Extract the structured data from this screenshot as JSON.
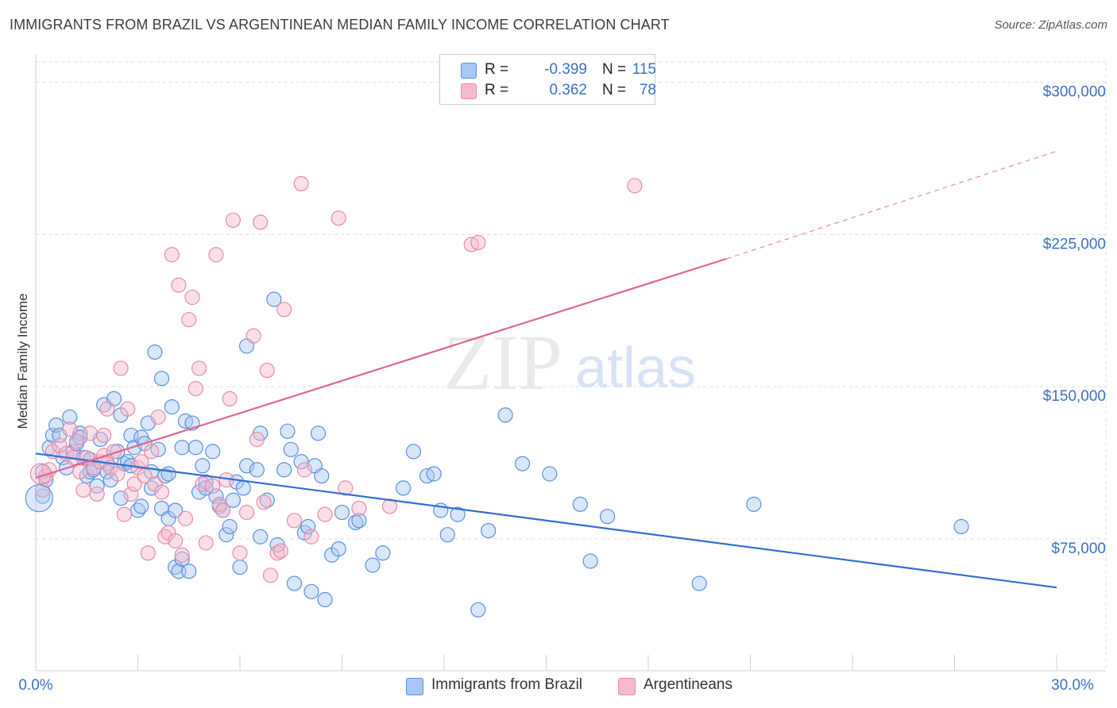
{
  "title": "IMMIGRANTS FROM BRAZIL VS ARGENTINEAN MEDIAN FAMILY INCOME CORRELATION CHART",
  "source": "Source: ZipAtlas.com",
  "watermark": {
    "zip": "ZIP",
    "atlas": "atlas"
  },
  "colors": {
    "blue": "#2f6fd0",
    "blue_fill": "#a9c7f3",
    "blue_edge": "#5b8fdc",
    "pink": "#e0658f",
    "pink_fill": "#f6b9cc",
    "pink_edge": "#e68aa8",
    "axis_text": "#3a6fc4",
    "grid": "#dddddd"
  },
  "legend": {
    "rows": [
      {
        "r_label": "R =",
        "r_value": "-0.399",
        "n_label": "N =",
        "n_value": "115"
      },
      {
        "r_label": "R =",
        "r_value": "0.362",
        "n_label": "N =",
        "n_value": "78"
      }
    ]
  },
  "bottom_legend": {
    "series1": "Immigrants from Brazil",
    "series2": "Argentineans"
  },
  "chart_data": {
    "type": "scatter",
    "xlabel": "",
    "ylabel": "Median Family Income",
    "xlim": [
      0,
      30
    ],
    "ylim": [
      10000,
      310000
    ],
    "x_tick_labels": [
      "0.0%",
      "30.0%"
    ],
    "y_ticks": [
      75000,
      150000,
      225000,
      300000
    ],
    "y_tick_labels": [
      "$75,000",
      "$150,000",
      "$225,000",
      "$300,000"
    ],
    "grid": true,
    "series": [
      {
        "name": "Immigrants from Brazil",
        "color": "#2f6fd0",
        "trend": {
          "x0": 0,
          "y0": 117000,
          "x1": 30,
          "y1": 51000
        },
        "points": [
          [
            0.2,
            96000
          ],
          [
            0.2,
            108000
          ],
          [
            0.3,
            104000
          ],
          [
            0.4,
            120000
          ],
          [
            0.5,
            126000
          ],
          [
            0.6,
            131000
          ],
          [
            0.7,
            126000
          ],
          [
            0.8,
            115000
          ],
          [
            0.9,
            110000
          ],
          [
            1.0,
            135000
          ],
          [
            1.1,
            118000
          ],
          [
            1.2,
            122000
          ],
          [
            1.3,
            127000
          ],
          [
            1.3,
            125000
          ],
          [
            1.4,
            115000
          ],
          [
            1.5,
            106000
          ],
          [
            1.6,
            114000
          ],
          [
            1.6,
            108000
          ],
          [
            1.7,
            109000
          ],
          [
            1.8,
            101000
          ],
          [
            1.9,
            124000
          ],
          [
            2.0,
            141000
          ],
          [
            2.1,
            112000
          ],
          [
            2.1,
            108000
          ],
          [
            2.2,
            104000
          ],
          [
            2.3,
            144000
          ],
          [
            2.4,
            118000
          ],
          [
            2.5,
            136000
          ],
          [
            2.5,
            95000
          ],
          [
            2.6,
            112000
          ],
          [
            2.7,
            113000
          ],
          [
            2.8,
            111000
          ],
          [
            2.8,
            126000
          ],
          [
            2.9,
            120000
          ],
          [
            3.0,
            89000
          ],
          [
            3.1,
            91000
          ],
          [
            3.1,
            125000
          ],
          [
            3.2,
            122000
          ],
          [
            3.3,
            132000
          ],
          [
            3.4,
            108000
          ],
          [
            3.4,
            100000
          ],
          [
            3.5,
            167000
          ],
          [
            3.6,
            119000
          ],
          [
            3.7,
            90000
          ],
          [
            3.7,
            154000
          ],
          [
            3.8,
            106000
          ],
          [
            3.9,
            85000
          ],
          [
            3.9,
            107000
          ],
          [
            4.0,
            140000
          ],
          [
            4.1,
            89000
          ],
          [
            4.1,
            61000
          ],
          [
            4.2,
            59000
          ],
          [
            4.3,
            65000
          ],
          [
            4.3,
            120000
          ],
          [
            4.4,
            133000
          ],
          [
            4.5,
            59000
          ],
          [
            4.6,
            132000
          ],
          [
            4.7,
            120000
          ],
          [
            4.8,
            98000
          ],
          [
            4.9,
            111000
          ],
          [
            5.0,
            103000
          ],
          [
            5.0,
            100000
          ],
          [
            5.2,
            118000
          ],
          [
            5.3,
            96000
          ],
          [
            5.4,
            91000
          ],
          [
            5.5,
            89000
          ],
          [
            5.6,
            77000
          ],
          [
            5.7,
            81000
          ],
          [
            5.8,
            94000
          ],
          [
            5.9,
            103000
          ],
          [
            6.0,
            61000
          ],
          [
            6.1,
            100000
          ],
          [
            6.2,
            170000
          ],
          [
            6.2,
            111000
          ],
          [
            6.5,
            109000
          ],
          [
            6.6,
            76000
          ],
          [
            6.6,
            127000
          ],
          [
            6.8,
            94000
          ],
          [
            7.0,
            193000
          ],
          [
            7.1,
            72000
          ],
          [
            7.3,
            109000
          ],
          [
            7.4,
            128000
          ],
          [
            7.5,
            119000
          ],
          [
            7.6,
            53000
          ],
          [
            7.8,
            113000
          ],
          [
            7.9,
            78000
          ],
          [
            8.0,
            81000
          ],
          [
            8.1,
            49000
          ],
          [
            8.2,
            111000
          ],
          [
            8.3,
            127000
          ],
          [
            8.4,
            106000
          ],
          [
            8.5,
            45000
          ],
          [
            8.7,
            67000
          ],
          [
            8.9,
            70000
          ],
          [
            9.0,
            88000
          ],
          [
            9.4,
            83000
          ],
          [
            9.5,
            84000
          ],
          [
            9.9,
            62000
          ],
          [
            10.2,
            68000
          ],
          [
            10.8,
            100000
          ],
          [
            11.1,
            118000
          ],
          [
            11.5,
            106000
          ],
          [
            11.7,
            107000
          ],
          [
            11.9,
            89000
          ],
          [
            12.1,
            77000
          ],
          [
            12.4,
            87000
          ],
          [
            13.0,
            40000
          ],
          [
            13.3,
            79000
          ],
          [
            13.8,
            136000
          ],
          [
            14.3,
            112000
          ],
          [
            15.1,
            107000
          ],
          [
            16.0,
            92000
          ],
          [
            16.3,
            64000
          ],
          [
            16.8,
            86000
          ],
          [
            19.5,
            53000
          ],
          [
            21.1,
            92000
          ],
          [
            27.2,
            81000
          ]
        ]
      },
      {
        "name": "Argentineans",
        "color": "#e0658f",
        "trend": {
          "x0": 0,
          "y0": 105000,
          "x1": 20.3,
          "y1": 213000,
          "x_dash_end": 30,
          "y_dash_end": 266000
        },
        "points": [
          [
            0.2,
            99000
          ],
          [
            0.3,
            106000
          ],
          [
            0.4,
            109000
          ],
          [
            0.5,
            118000
          ],
          [
            0.7,
            121000
          ],
          [
            0.9,
            117000
          ],
          [
            1.0,
            129000
          ],
          [
            1.1,
            115000
          ],
          [
            1.2,
            123000
          ],
          [
            1.3,
            108000
          ],
          [
            1.4,
            99000
          ],
          [
            1.5,
            115000
          ],
          [
            1.6,
            127000
          ],
          [
            1.7,
            110000
          ],
          [
            1.8,
            97000
          ],
          [
            1.9,
            113000
          ],
          [
            2.0,
            116000
          ],
          [
            2.0,
            126000
          ],
          [
            2.1,
            139000
          ],
          [
            2.2,
            110000
          ],
          [
            2.3,
            118000
          ],
          [
            2.4,
            107000
          ],
          [
            2.5,
            159000
          ],
          [
            2.6,
            87000
          ],
          [
            2.7,
            139000
          ],
          [
            2.8,
            97000
          ],
          [
            2.9,
            102000
          ],
          [
            3.0,
            110000
          ],
          [
            3.1,
            113000
          ],
          [
            3.2,
            106000
          ],
          [
            3.3,
            68000
          ],
          [
            3.4,
            118000
          ],
          [
            3.5,
            102000
          ],
          [
            3.6,
            135000
          ],
          [
            3.7,
            98000
          ],
          [
            3.8,
            76000
          ],
          [
            3.9,
            78000
          ],
          [
            4.0,
            215000
          ],
          [
            4.1,
            74000
          ],
          [
            4.2,
            200000
          ],
          [
            4.3,
            67000
          ],
          [
            4.4,
            85000
          ],
          [
            4.5,
            183000
          ],
          [
            4.6,
            194000
          ],
          [
            4.7,
            149000
          ],
          [
            4.8,
            159000
          ],
          [
            4.9,
            102000
          ],
          [
            5.0,
            73000
          ],
          [
            5.2,
            101000
          ],
          [
            5.3,
            215000
          ],
          [
            5.4,
            92000
          ],
          [
            5.5,
            89000
          ],
          [
            5.6,
            104000
          ],
          [
            5.7,
            144000
          ],
          [
            5.8,
            232000
          ],
          [
            6.0,
            68000
          ],
          [
            6.2,
            88000
          ],
          [
            6.4,
            175000
          ],
          [
            6.5,
            124000
          ],
          [
            6.6,
            231000
          ],
          [
            6.7,
            93000
          ],
          [
            6.8,
            158000
          ],
          [
            6.9,
            57000
          ],
          [
            7.1,
            68000
          ],
          [
            7.2,
            69000
          ],
          [
            7.3,
            188000
          ],
          [
            7.6,
            84000
          ],
          [
            7.8,
            250000
          ],
          [
            7.9,
            109000
          ],
          [
            8.1,
            76000
          ],
          [
            8.5,
            87000
          ],
          [
            8.9,
            233000
          ],
          [
            9.1,
            100000
          ],
          [
            9.5,
            90000
          ],
          [
            10.4,
            91000
          ],
          [
            12.8,
            220000
          ],
          [
            13.0,
            221000
          ],
          [
            17.6,
            249000
          ]
        ]
      }
    ]
  }
}
